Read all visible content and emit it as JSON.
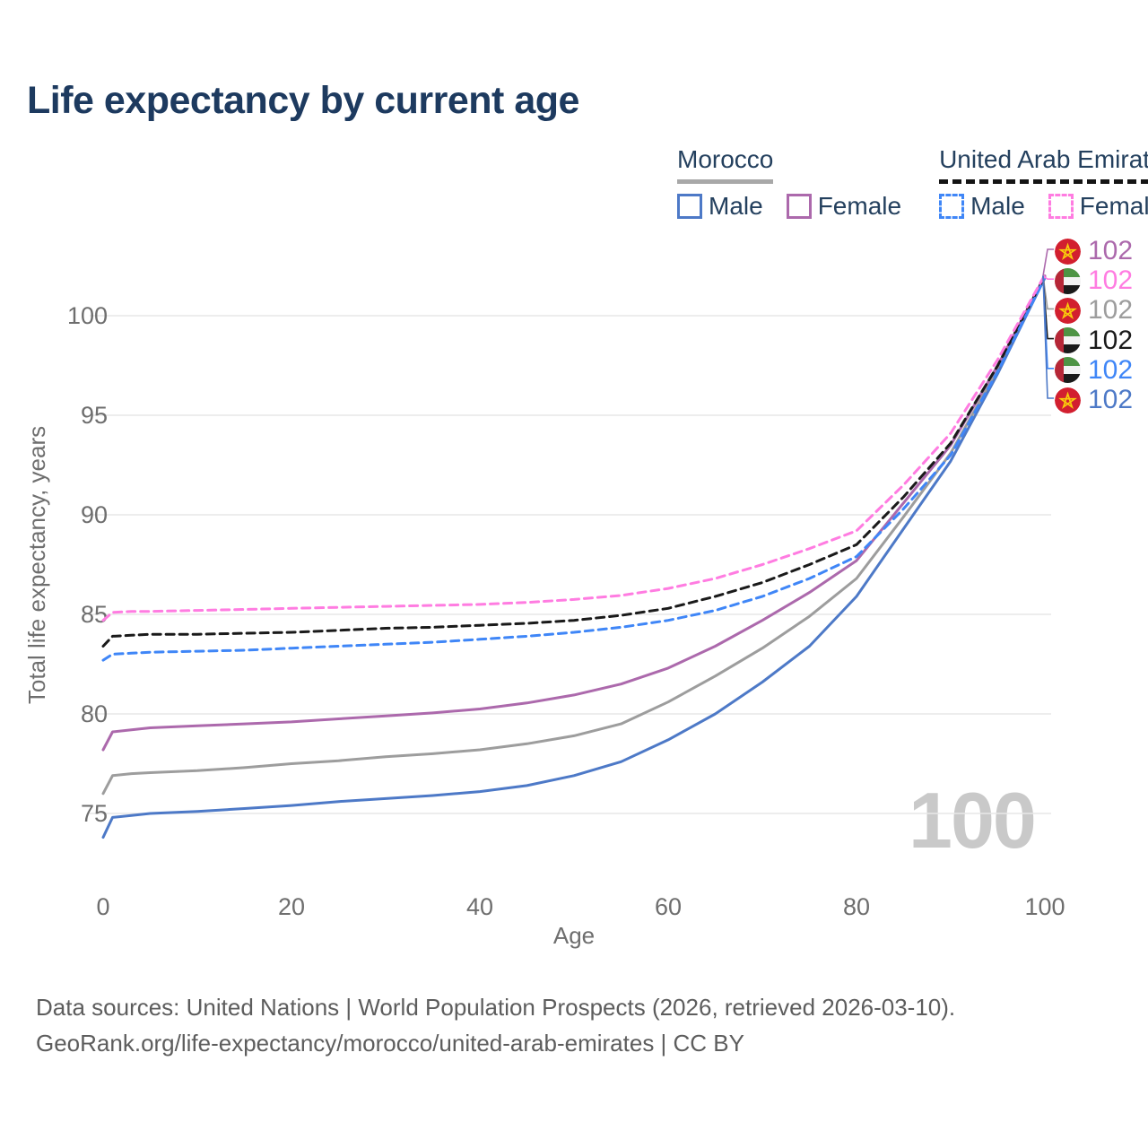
{
  "title": "Life expectancy by current age",
  "legend": {
    "groups": [
      {
        "label": "Morocco",
        "underline": "solid",
        "underline_color": "#a8a8a8",
        "items": [
          {
            "label": "Male",
            "style": "solid",
            "color": "#4d79c7"
          },
          {
            "label": "Female",
            "style": "solid",
            "color": "#ac69ac"
          }
        ]
      },
      {
        "label": "United Arab Emirates",
        "underline": "dashed",
        "underline_color": "#141414",
        "items": [
          {
            "label": "Male",
            "style": "dashed",
            "color": "#3f86f7"
          },
          {
            "label": "Female",
            "style": "dashed",
            "color": "#ff7ce1"
          }
        ]
      }
    ]
  },
  "chart_data": {
    "type": "line",
    "title": "Life expectancy by current age",
    "xlabel": "Age",
    "ylabel": "Total life expectancy, years",
    "xlim": [
      0,
      100
    ],
    "ylim": [
      73,
      103
    ],
    "x_ticks": [
      0,
      20,
      40,
      60,
      80,
      100
    ],
    "y_ticks": [
      75,
      80,
      85,
      90,
      95,
      100
    ],
    "grid": "horizontal",
    "x": [
      0,
      1,
      3,
      5,
      10,
      15,
      20,
      25,
      30,
      35,
      40,
      45,
      50,
      55,
      60,
      65,
      70,
      75,
      80,
      85,
      90,
      95,
      100
    ],
    "series": [
      {
        "id": "morocco-all",
        "name": "Morocco (all)",
        "color": "#9d9d9d",
        "dash": false,
        "values": [
          76.0,
          76.9,
          77.0,
          77.05,
          77.15,
          77.3,
          77.5,
          77.65,
          77.85,
          78.0,
          78.2,
          78.5,
          78.9,
          79.5,
          80.6,
          81.9,
          83.3,
          84.9,
          86.8,
          89.9,
          93.1,
          97.3,
          101.95
        ]
      },
      {
        "id": "morocco-female",
        "name": "Morocco Female",
        "color": "#ac69ac",
        "dash": false,
        "values": [
          78.2,
          79.1,
          79.2,
          79.3,
          79.4,
          79.5,
          79.6,
          79.75,
          79.9,
          80.05,
          80.25,
          80.55,
          80.95,
          81.5,
          82.3,
          83.4,
          84.7,
          86.1,
          87.7,
          90.6,
          93.5,
          97.5,
          102.0
        ]
      },
      {
        "id": "morocco-male",
        "name": "Morocco Male",
        "color": "#4d79c7",
        "dash": false,
        "values": [
          73.8,
          74.8,
          74.9,
          75.0,
          75.1,
          75.25,
          75.4,
          75.6,
          75.75,
          75.9,
          76.1,
          76.4,
          76.9,
          77.6,
          78.7,
          80.0,
          81.6,
          83.4,
          85.9,
          89.3,
          92.7,
          97.1,
          101.9
        ]
      },
      {
        "id": "uae-all",
        "name": "United Arab Emirates (all)",
        "color": "#1a1a1a",
        "dash": true,
        "values": [
          83.4,
          83.9,
          83.95,
          84.0,
          84.0,
          84.05,
          84.1,
          84.2,
          84.3,
          84.35,
          84.45,
          84.55,
          84.7,
          84.95,
          85.3,
          85.9,
          86.6,
          87.5,
          88.5,
          90.9,
          93.6,
          97.5,
          102.0
        ]
      },
      {
        "id": "uae-male",
        "name": "United Arab Emirates Male",
        "color": "#3f86f7",
        "dash": true,
        "values": [
          82.7,
          83.0,
          83.05,
          83.1,
          83.15,
          83.2,
          83.3,
          83.4,
          83.5,
          83.6,
          83.75,
          83.9,
          84.1,
          84.35,
          84.7,
          85.2,
          85.9,
          86.8,
          87.9,
          90.3,
          93.0,
          97.2,
          101.9
        ]
      },
      {
        "id": "uae-female",
        "name": "United Arab Emirates Female",
        "color": "#ff7ce1",
        "dash": true,
        "values": [
          84.7,
          85.1,
          85.15,
          85.15,
          85.2,
          85.25,
          85.3,
          85.35,
          85.4,
          85.45,
          85.5,
          85.6,
          85.75,
          85.95,
          86.3,
          86.8,
          87.5,
          88.3,
          89.2,
          91.5,
          94.1,
          97.8,
          102.05
        ]
      }
    ]
  },
  "end_labels": [
    {
      "flag": "morocco",
      "value": "102",
      "color": "#ac69ac"
    },
    {
      "flag": "uae",
      "value": "102",
      "color": "#ff7ce1"
    },
    {
      "flag": "morocco",
      "value": "102",
      "color": "#9d9d9d"
    },
    {
      "flag": "uae",
      "value": "102",
      "color": "#1a1a1a"
    },
    {
      "flag": "uae",
      "value": "102",
      "color": "#3f86f7"
    },
    {
      "flag": "morocco",
      "value": "102",
      "color": "#4d79c7"
    }
  ],
  "watermark": "100",
  "footer": {
    "line1": "Data sources: United Nations | World Population Prospects (2026, retrieved 2026-03-10).",
    "line2": "GeoRank.org/life-expectancy/morocco/united-arab-emirates | CC BY"
  }
}
